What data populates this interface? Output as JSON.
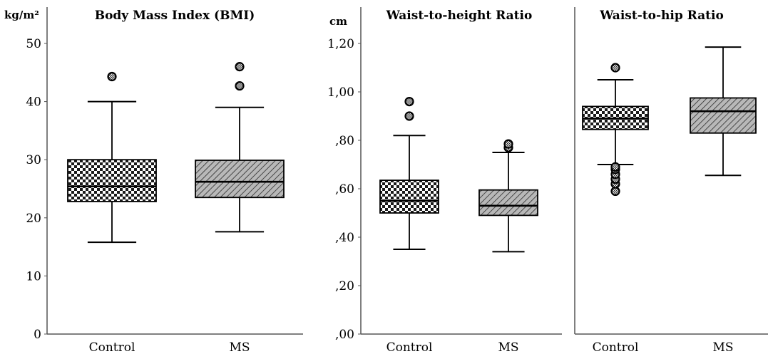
{
  "colors": {
    "axis": "#555555",
    "ink": "#000000",
    "diag_fill": "#b8b8b8",
    "check_dark": "#1a1a1a"
  },
  "chart_data": [
    {
      "type": "box",
      "title": "Body Mass Index (BMI)",
      "unit": "kg/m²",
      "ylim": [
        0,
        50
      ],
      "ticks": [
        0,
        10,
        20,
        30,
        40,
        50
      ],
      "tick_labels": [
        "0",
        "10",
        "20",
        "30",
        "40",
        "50"
      ],
      "categories": [
        "Control",
        "MS"
      ],
      "boxes": [
        {
          "category": "Control",
          "pattern": "checker",
          "whisker_low": 15.8,
          "q1": 22.8,
          "median": 25.4,
          "q3": 30.0,
          "whisker_high": 40.0,
          "outliers": [
            44.3
          ]
        },
        {
          "category": "MS",
          "pattern": "diagonal",
          "whisker_low": 17.6,
          "q1": 23.5,
          "median": 26.2,
          "q3": 29.9,
          "whisker_high": 39.0,
          "outliers": [
            42.7,
            46.0
          ]
        }
      ]
    },
    {
      "type": "box",
      "title": "Waist-to-height Ratio",
      "unit": "cm",
      "ylim": [
        0,
        1.2
      ],
      "ticks": [
        0,
        0.2,
        0.4,
        0.6,
        0.8,
        1.0,
        1.2
      ],
      "tick_labels": [
        ",00",
        ",20",
        ",40",
        ",60",
        ",80",
        "1,00",
        "1,20"
      ],
      "categories": [
        "Control",
        "MS"
      ],
      "boxes": [
        {
          "category": "Control",
          "pattern": "checker",
          "whisker_low": 0.35,
          "q1": 0.5,
          "median": 0.55,
          "q3": 0.635,
          "whisker_high": 0.82,
          "outliers": [
            0.9,
            0.96
          ]
        },
        {
          "category": "MS",
          "pattern": "diagonal",
          "whisker_low": 0.34,
          "q1": 0.49,
          "median": 0.53,
          "q3": 0.595,
          "whisker_high": 0.75,
          "outliers": [
            0.77,
            0.785
          ]
        }
      ]
    },
    {
      "type": "box",
      "title": "Waist-to-hip Ratio",
      "unit": "",
      "ylim": [
        0,
        1.2
      ],
      "ticks": [],
      "tick_labels": [],
      "categories": [
        "Control",
        "MS"
      ],
      "boxes": [
        {
          "category": "Control",
          "pattern": "checker",
          "whisker_low": 0.7,
          "q1": 0.845,
          "median": 0.89,
          "q3": 0.94,
          "whisker_high": 1.05,
          "outliers": [
            0.59,
            0.62,
            0.64,
            0.66,
            0.68,
            0.69,
            1.1
          ]
        },
        {
          "category": "MS",
          "pattern": "diagonal",
          "whisker_low": 0.655,
          "q1": 0.83,
          "median": 0.92,
          "q3": 0.975,
          "whisker_high": 1.185,
          "outliers": []
        }
      ]
    }
  ]
}
